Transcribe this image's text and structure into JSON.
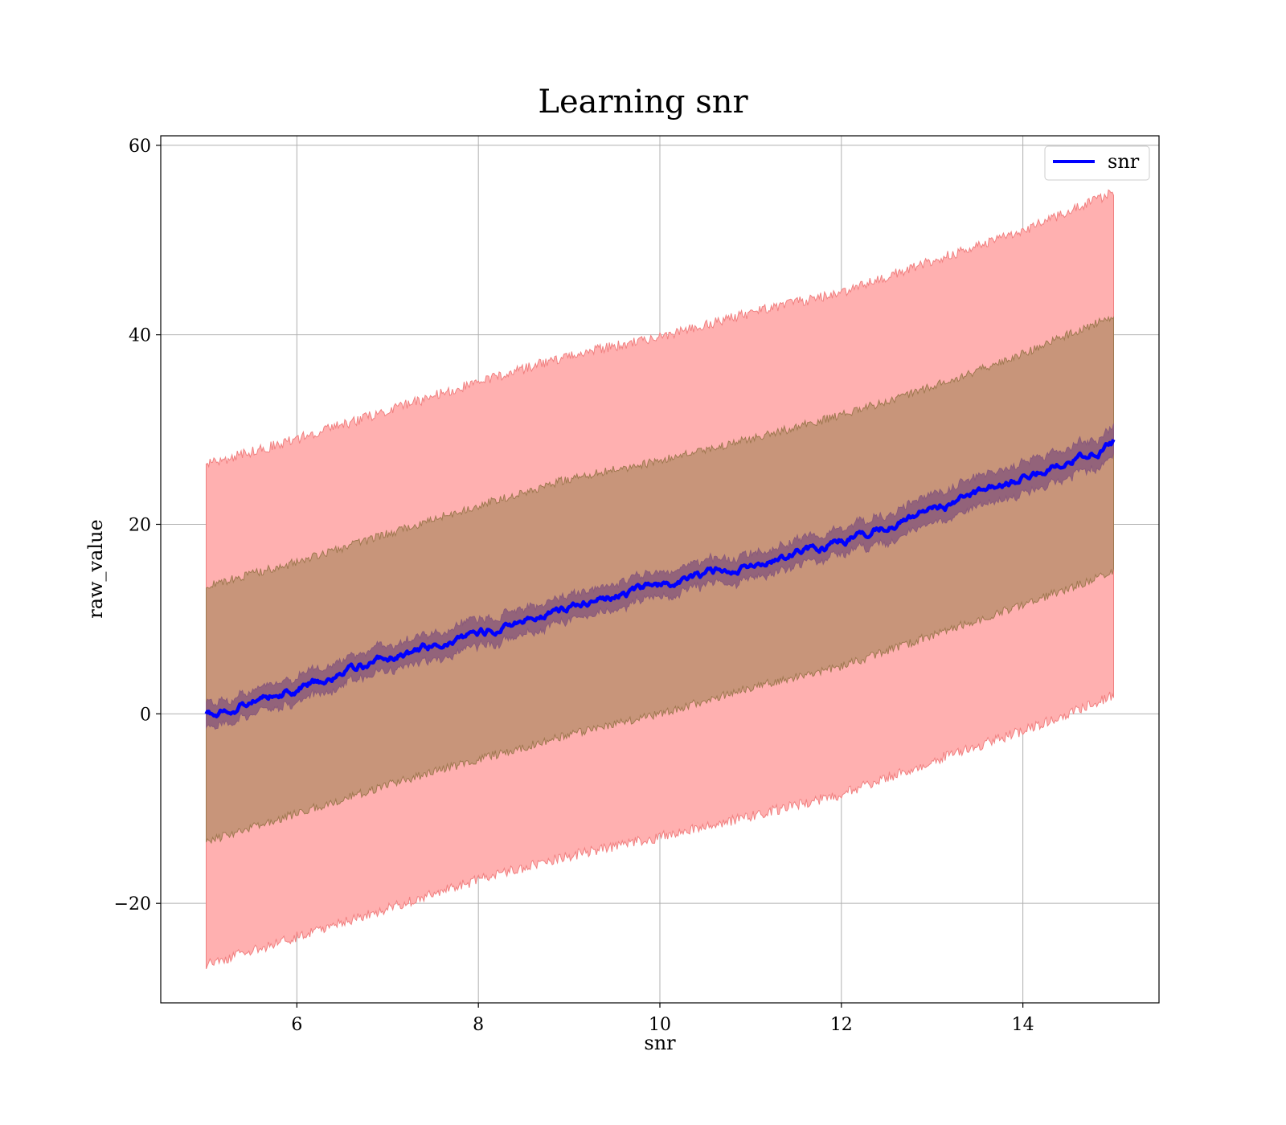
{
  "chart_data": {
    "type": "line",
    "title": "Learning snr",
    "xlabel": "snr",
    "ylabel": "raw_value",
    "xlim": [
      4.5,
      15.5
    ],
    "ylim": [
      -30.5,
      61
    ],
    "xticks": [
      6,
      8,
      10,
      12,
      14
    ],
    "xtick_labels": [
      "6",
      "8",
      "10",
      "12",
      "14"
    ],
    "yticks": [
      -20,
      0,
      20,
      40,
      60
    ],
    "ytick_labels": [
      "−20",
      "0",
      "20",
      "40",
      "60"
    ],
    "grid": true,
    "legend": {
      "position": "top-right",
      "entries": [
        "snr"
      ]
    },
    "colors": {
      "mean_line": "#0000ff",
      "band_outer": "#ffb0b0",
      "band_outer_edge": "#f08080",
      "band_middle": "#c8957a",
      "band_middle_edge": "#a07850",
      "band_inner": "#8a5a7a"
    },
    "series": [
      {
        "name": "snr",
        "x": [
          5,
          6,
          7,
          8,
          9,
          10,
          11,
          12,
          13,
          14,
          15
        ],
        "mean": [
          0,
          2.8,
          5.8,
          8.6,
          11.2,
          13.5,
          15.9,
          18.3,
          21.5,
          24.8,
          28.5
        ],
        "band_outer_upper": [
          26.3,
          29,
          32,
          35,
          37.8,
          39.8,
          42.3,
          44.5,
          47.8,
          51,
          55
        ],
        "band_outer_lower": [
          -26.5,
          -23.5,
          -20.5,
          -17.5,
          -15,
          -13,
          -10.8,
          -8.5,
          -5,
          -1.8,
          2
        ],
        "band_middle_upper": [
          13.5,
          16,
          19,
          22,
          24.8,
          26.7,
          29,
          31.5,
          34.5,
          38,
          42
        ],
        "band_middle_lower": [
          -13.5,
          -10.5,
          -7.5,
          -4.8,
          -2.2,
          0,
          2.8,
          5,
          8.3,
          11.5,
          15
        ],
        "band_inner_upper": [
          1.2,
          4.2,
          7.2,
          10,
          12.5,
          14.8,
          17.2,
          19.6,
          23,
          26.5,
          30
        ],
        "band_inner_lower": [
          -1.2,
          1.5,
          4.5,
          7.2,
          9.8,
          12.2,
          14.6,
          17,
          20,
          23.2,
          27
        ]
      }
    ]
  }
}
